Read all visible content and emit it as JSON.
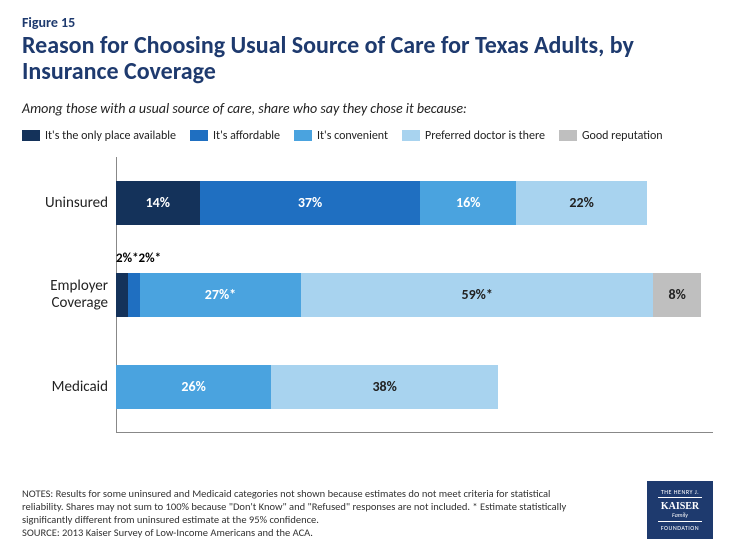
{
  "figure_number": "Figure 15",
  "title": "Reason for Choosing Usual Source of Care for Texas Adults, by Insurance Coverage",
  "subtitle": "Among those with a usual source of care, share who say they chose it because:",
  "chart": {
    "type": "stacked-bar-horizontal",
    "x_max_pct": 100,
    "bar_colors": {
      "only_place": "#14325a",
      "affordable": "#1f6fc1",
      "convenient": "#4aa3df",
      "preferred_doctor": "#a8d3ef",
      "reputation": "#bfbfbf"
    },
    "legend": [
      {
        "key": "only_place",
        "label": "It's the only place available"
      },
      {
        "key": "affordable",
        "label": "It's affordable"
      },
      {
        "key": "convenient",
        "label": "It's convenient"
      },
      {
        "key": "preferred_doctor",
        "label": "Preferred doctor is there"
      },
      {
        "key": "reputation",
        "label": "Good reputation"
      }
    ],
    "rows": [
      {
        "label": "Uninsured",
        "segments": [
          {
            "key": "only_place",
            "value": 14,
            "text": "14%",
            "text_inside": true
          },
          {
            "key": "affordable",
            "value": 37,
            "text": "37%",
            "text_inside": true
          },
          {
            "key": "convenient",
            "value": 16,
            "text": "16%",
            "text_inside": true
          },
          {
            "key": "preferred_doctor",
            "value": 22,
            "text": "22%",
            "text_inside": true,
            "dark_text": true
          }
        ],
        "callouts": []
      },
      {
        "label": "Employer Coverage",
        "segments": [
          {
            "key": "only_place",
            "value": 2,
            "text": "2%*",
            "text_inside": false
          },
          {
            "key": "affordable",
            "value": 2,
            "text": "2%*",
            "text_inside": false
          },
          {
            "key": "convenient",
            "value": 27,
            "text": "27%*",
            "text_inside": true
          },
          {
            "key": "preferred_doctor",
            "value": 59,
            "text": "59%*",
            "text_inside": true,
            "dark_text": true
          },
          {
            "key": "reputation",
            "value": 8,
            "text": "8%",
            "text_inside": true,
            "dark_text": true
          }
        ],
        "callouts": [
          {
            "text": "2%*",
            "left_pct": 0
          },
          {
            "text": "2%*",
            "left_pct": 5
          }
        ]
      },
      {
        "label": "Medicaid",
        "segments": [
          {
            "key": "convenient",
            "value": 26,
            "text": "26%",
            "text_inside": true
          },
          {
            "key": "preferred_doctor",
            "value": 38,
            "text": "38%",
            "text_inside": true,
            "dark_text": true
          }
        ],
        "callouts": []
      }
    ]
  },
  "notes_lines": [
    "NOTES: Results for some uninsured and Medicaid categories not shown because estimates do not meet criteria for statistical",
    "reliability. Shares may not sum to 100% because \"Don't Know\" and \"Refused\" responses are not included. * Estimate statistically",
    "significantly different from uninsured estimate at the 95% confidence.",
    "SOURCE: 2013 Kaiser Survey of Low-Income Americans and the ACA."
  ],
  "logo": {
    "line1": "THE HENRY J.",
    "line2": "KAISER",
    "line3": "Family",
    "line4": "FOUNDATION"
  }
}
